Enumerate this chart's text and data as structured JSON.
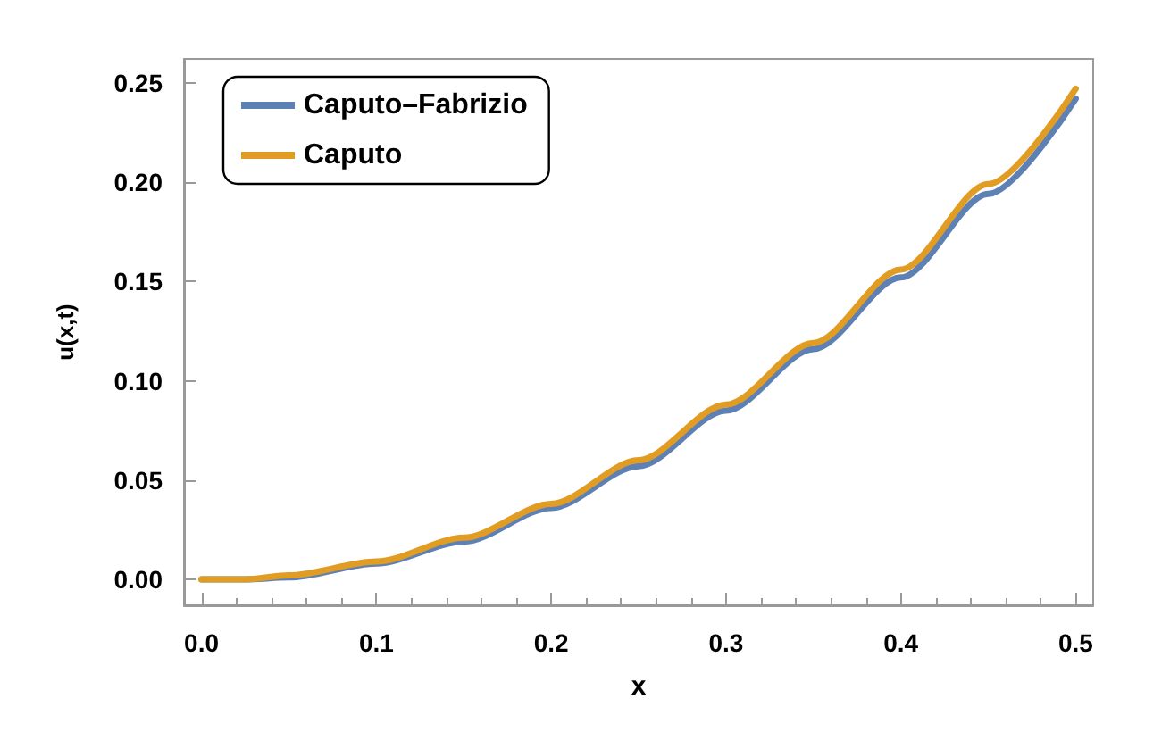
{
  "chart_data": {
    "type": "line",
    "xlabel": "x",
    "ylabel": "u(x,t)",
    "x": [
      0,
      0.025,
      0.05,
      0.1,
      0.15,
      0.2,
      0.25,
      0.3,
      0.35,
      0.4,
      0.45,
      0.5
    ],
    "series": [
      {
        "name": "Caputo–Fabrizio",
        "color": "#5e81b5",
        "values": [
          0,
          0,
          0.001,
          0.008,
          0.019,
          0.036,
          0.057,
          0.085,
          0.116,
          0.152,
          0.194,
          0.242
        ]
      },
      {
        "name": "Caputo",
        "color": "#e19c24",
        "values": [
          0,
          0,
          0.002,
          0.009,
          0.021,
          0.038,
          0.06,
          0.088,
          0.119,
          0.156,
          0.199,
          0.247
        ]
      }
    ],
    "xlim": [
      -0.01,
      0.51
    ],
    "xticks": [
      {
        "value": 0,
        "label": "0.0"
      },
      {
        "value": 0.1,
        "label": "0.1"
      },
      {
        "value": 0.2,
        "label": "0.2"
      },
      {
        "value": 0.3,
        "label": "0.3"
      },
      {
        "value": 0.4,
        "label": "0.4"
      },
      {
        "value": 0.5,
        "label": "0.5"
      }
    ],
    "ylim": [
      -0.013,
      0.262
    ],
    "yticks": [
      {
        "value": 0,
        "label": "0.00"
      },
      {
        "value": 0.05,
        "label": "0.05"
      },
      {
        "value": 0.1,
        "label": "0.10"
      },
      {
        "value": 0.15,
        "label": "0.15"
      },
      {
        "value": 0.2,
        "label": "0.20"
      },
      {
        "value": 0.25,
        "label": "0.25"
      }
    ],
    "legend": "top left",
    "marker": "none",
    "line_style": "solid"
  }
}
